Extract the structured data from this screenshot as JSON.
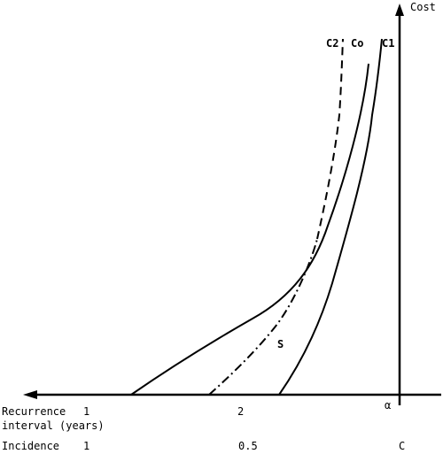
{
  "axes": {
    "y_label": "Cost",
    "origin_label": "α"
  },
  "curves": {
    "c2": {
      "label": "C2",
      "style": "dashed"
    },
    "c0": {
      "label": "Co",
      "style": "solid"
    },
    "c1": {
      "label": "C1",
      "style": "solid"
    },
    "s": {
      "label": "S",
      "style": "dash-dot"
    }
  },
  "x_scales": {
    "recurrence": {
      "title_line1": "Recurrence",
      "title_line2": "interval (years)",
      "ticks": [
        "1",
        "2"
      ]
    },
    "incidence": {
      "title": "Incidence",
      "ticks": [
        "1",
        "0.5",
        "C"
      ]
    }
  }
}
